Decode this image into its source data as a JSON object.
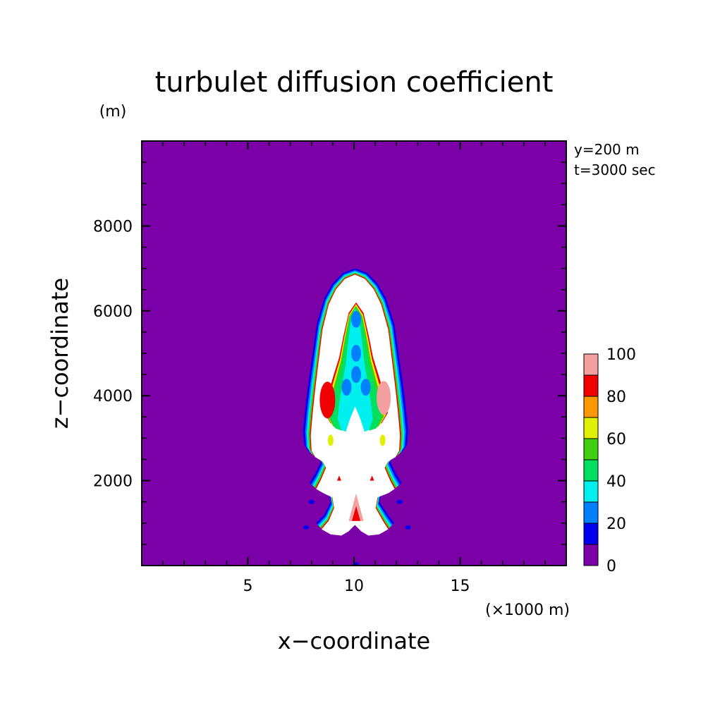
{
  "colors": {
    "background": "#7b00a8",
    "plume_core": "#ffffff",
    "frame": "#000000"
  },
  "chart_data": {
    "type": "heatmap",
    "title": "turbulet diffusion coefficient",
    "xlabel": "x−coordinate",
    "ylabel": "z−coordinate",
    "x_unit": "(×1000 m)",
    "y_unit": "(m)",
    "annotation_lines": [
      "y=200 m",
      "t=3000 sec"
    ],
    "xlim": [
      0,
      20
    ],
    "ylim": [
      0,
      10000
    ],
    "x_ticks": [
      5,
      10,
      15
    ],
    "y_ticks": [
      2000,
      4000,
      6000,
      8000
    ],
    "colorbar": {
      "levels": [
        0,
        10,
        20,
        30,
        40,
        50,
        60,
        70,
        80,
        90,
        100
      ],
      "labels": [
        0,
        20,
        40,
        60,
        80,
        100
      ],
      "colors": [
        "#7b00a8",
        "#0000f0",
        "#0080ff",
        "#00f0f0",
        "#00e060",
        "#40d010",
        "#e0f000",
        "#ff9800",
        "#f00000",
        "#f4a0a0"
      ]
    },
    "plume": {
      "core_value": ">100",
      "center_x": 10,
      "base_z": 900,
      "top_z": 7000,
      "inner_column_top_z": 6200,
      "max_half_width_x": 2.6
    }
  }
}
